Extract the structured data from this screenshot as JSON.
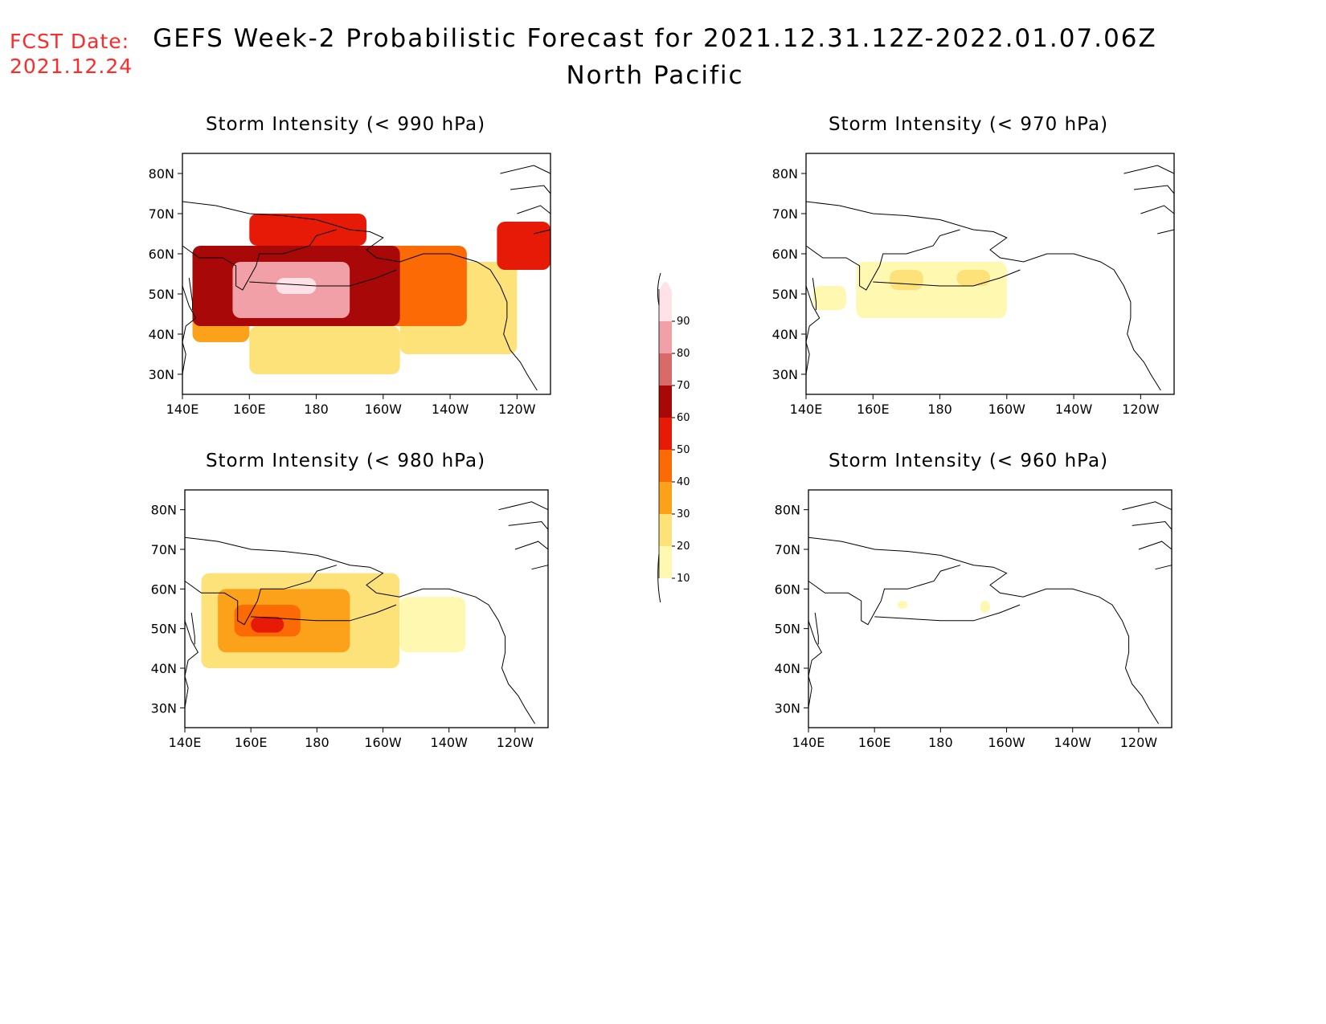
{
  "header": {
    "fcst_label": "FCST Date:",
    "fcst_date": "2021.12.24",
    "title": "GEFS Week-2 Probabilistic Forecast for 2021.12.31.12Z-2022.01.07.06Z",
    "subtitle": "North Pacific"
  },
  "axes": {
    "lat_labels": [
      "80N",
      "70N",
      "60N",
      "50N",
      "40N",
      "30N"
    ],
    "lon_labels": [
      "140E",
      "160E",
      "180",
      "160W",
      "140W",
      "120W"
    ]
  },
  "colorbar": {
    "levels": [
      "10",
      "20",
      "30",
      "40",
      "50",
      "60",
      "70",
      "80",
      "90"
    ],
    "colors": [
      "#fff8b0",
      "#fde27a",
      "#fca21a",
      "#fc6a06",
      "#e61a06",
      "#a80808",
      "#d96a6a",
      "#f2a0a8",
      "#ffe2e8"
    ]
  },
  "panels": [
    {
      "id": "p990",
      "title": "Storm Intensity (< 990 hPa)"
    },
    {
      "id": "p970",
      "title": "Storm Intensity (< 970 hPa)"
    },
    {
      "id": "p980",
      "title": "Storm Intensity (< 980 hPa)"
    },
    {
      "id": "p960",
      "title": "Storm Intensity (< 960 hPa)"
    }
  ],
  "chart_data": [
    {
      "type": "heatmap",
      "title": "Storm Intensity (< 990 hPa)",
      "xlim": [
        "140E",
        "110W"
      ],
      "ylim": [
        "25N",
        "85N"
      ],
      "value_units": "%",
      "regions": [
        {
          "lon_min": 143,
          "lon_max": 160,
          "lat_min": 38,
          "lat_max": 48,
          "value": 30
        },
        {
          "lon_min": 160,
          "lon_max": 205,
          "lat_min": 30,
          "lat_max": 42,
          "value": 20
        },
        {
          "lon_min": 205,
          "lon_max": 240,
          "lat_min": 35,
          "lat_max": 58,
          "value": 20
        },
        {
          "lon_min": 195,
          "lon_max": 225,
          "lat_min": 42,
          "lat_max": 62,
          "value": 40
        },
        {
          "lon_min": 143,
          "lon_max": 205,
          "lat_min": 42,
          "lat_max": 62,
          "value": 60
        },
        {
          "lon_min": 160,
          "lon_max": 195,
          "lat_min": 62,
          "lat_max": 70,
          "value": 50
        },
        {
          "lon_min": 155,
          "lon_max": 190,
          "lat_min": 44,
          "lat_max": 58,
          "value": 80
        },
        {
          "lon_min": 168,
          "lon_max": 180,
          "lat_min": 50,
          "lat_max": 54,
          "value": 90
        },
        {
          "lon_min": 234,
          "lon_max": 250,
          "lat_min": 56,
          "lat_max": 68,
          "value": 50
        }
      ]
    },
    {
      "type": "heatmap",
      "title": "Storm Intensity (< 970 hPa)",
      "xlim": [
        "140E",
        "110W"
      ],
      "ylim": [
        "25N",
        "85N"
      ],
      "value_units": "%",
      "regions": [
        {
          "lon_min": 155,
          "lon_max": 200,
          "lat_min": 44,
          "lat_max": 58,
          "value": 10
        },
        {
          "lon_min": 165,
          "lon_max": 175,
          "lat_min": 51,
          "lat_max": 56,
          "value": 20
        },
        {
          "lon_min": 185,
          "lon_max": 195,
          "lat_min": 52,
          "lat_max": 56,
          "value": 20
        },
        {
          "lon_min": 142,
          "lon_max": 152,
          "lat_min": 46,
          "lat_max": 52,
          "value": 10
        }
      ]
    },
    {
      "type": "heatmap",
      "title": "Storm Intensity (< 980 hPa)",
      "xlim": [
        "140E",
        "110W"
      ],
      "ylim": [
        "25N",
        "85N"
      ],
      "value_units": "%",
      "regions": [
        {
          "lon_min": 145,
          "lon_max": 205,
          "lat_min": 40,
          "lat_max": 64,
          "value": 20
        },
        {
          "lon_min": 150,
          "lon_max": 190,
          "lat_min": 44,
          "lat_max": 60,
          "value": 30
        },
        {
          "lon_min": 155,
          "lon_max": 175,
          "lat_min": 48,
          "lat_max": 56,
          "value": 40
        },
        {
          "lon_min": 160,
          "lon_max": 170,
          "lat_min": 49,
          "lat_max": 53,
          "value": 50
        },
        {
          "lon_min": 205,
          "lon_max": 225,
          "lat_min": 44,
          "lat_max": 58,
          "value": 10
        }
      ]
    },
    {
      "type": "heatmap",
      "title": "Storm Intensity (< 960 hPa)",
      "xlim": [
        "140E",
        "110W"
      ],
      "ylim": [
        "25N",
        "85N"
      ],
      "value_units": "%",
      "regions": [
        {
          "lon_min": 167,
          "lon_max": 170,
          "lat_min": 55,
          "lat_max": 57,
          "value": 10
        },
        {
          "lon_min": 192,
          "lon_max": 195,
          "lat_min": 54,
          "lat_max": 57,
          "value": 10
        }
      ]
    }
  ]
}
